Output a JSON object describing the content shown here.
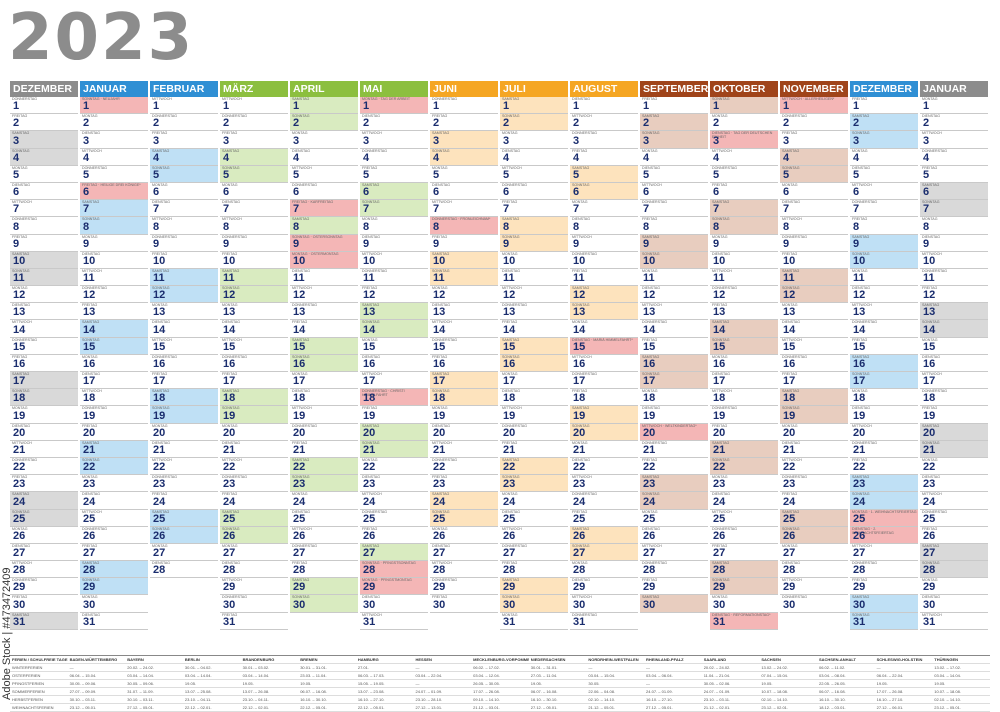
{
  "year": "2023",
  "watermark": "Adobe Stock | #473472409",
  "weekday_names": [
    "SONNTAG",
    "MONTAG",
    "DIENSTAG",
    "MITTWOCH",
    "DONNERSTAG",
    "FREITAG",
    "SAMSTAG"
  ],
  "months": [
    {
      "name": "Dezember",
      "color": "#8c8c8c",
      "tint": "#d9d9d9",
      "days": 31,
      "start": 4,
      "week_num_tint": true
    },
    {
      "name": "Januar",
      "color": "#2f8fd4",
      "tint": "#bfe0f5",
      "days": 31,
      "start": 0
    },
    {
      "name": "Februar",
      "color": "#2f8fd4",
      "tint": "#bfe0f5",
      "days": 28,
      "start": 3
    },
    {
      "name": "März",
      "color": "#8cbf3f",
      "tint": "#d9ebc0",
      "days": 31,
      "start": 3
    },
    {
      "name": "April",
      "color": "#8cbf3f",
      "tint": "#d9ebc0",
      "days": 30,
      "start": 6
    },
    {
      "name": "Mai",
      "color": "#8cbf3f",
      "tint": "#d9ebc0",
      "days": 31,
      "start": 1
    },
    {
      "name": "Juni",
      "color": "#f5a623",
      "tint": "#fde3bd",
      "days": 30,
      "start": 4
    },
    {
      "name": "Juli",
      "color": "#f5a623",
      "tint": "#fde3bd",
      "days": 31,
      "start": 6
    },
    {
      "name": "August",
      "color": "#f5a623",
      "tint": "#fde3bd",
      "days": 31,
      "start": 2
    },
    {
      "name": "September",
      "color": "#a0441a",
      "tint": "#e8cdbf",
      "days": 30,
      "start": 5
    },
    {
      "name": "Oktober",
      "color": "#a0441a",
      "tint": "#e8cdbf",
      "days": 31,
      "start": 0
    },
    {
      "name": "November",
      "color": "#a0441a",
      "tint": "#e8cdbf",
      "days": 30,
      "start": 3
    },
    {
      "name": "Dezember",
      "color": "#2f8fd4",
      "tint": "#bfe0f5",
      "days": 31,
      "start": 5
    },
    {
      "name": "Januar",
      "color": "#8c8c8c",
      "tint": "#d9d9d9",
      "days": 31,
      "start": 1
    }
  ],
  "holidays": {
    "1-1": "SONNTAG · NEUJAHR",
    "1-6": "FREITAG · HEILIGE DREI KÖNIGE*",
    "4-7": "FREITAG · KARFREITAG",
    "4-9": "SONNTAG · OSTERSONNTAG",
    "4-10": "MONTAG · OSTERMONTAG",
    "5-1": "MONTAG · TAG DER ARBEIT",
    "5-18": "DONNERSTAG · CHRISTI HIMMELFAHRT",
    "5-28": "SONNTAG · PFINGSTSONNTAG",
    "5-29": "MONTAG · PFINGSTMONTAG",
    "6-8": "DONNERSTAG · FRONLEICHNAM*",
    "8-15": "DIENSTAG · MARIÄ HIMMELFAHRT*",
    "9-20": "MITTWOCH · WELTKINDERTAG*",
    "10-3": "DIENSTAG · TAG DER DEUTSCHEN EINHEIT",
    "10-31": "DIENSTAG · REFORMATIONSTAG*",
    "11-1": "MITTWOCH · ALLERHEILIGEN*",
    "12-25": "MONTAG · 1. WEIHNACHTSFEIERTAG",
    "12-26": "DIENSTAG · 2. WEIHNACHTSFEIERTAG"
  },
  "holiday_color": "#f4b6b6",
  "footer": {
    "headers": [
      "FERIEN / SCHULFREIE TAGE",
      "BADEN-WÜRTTEMBERG",
      "BAYERN",
      "BERLIN",
      "BRANDENBURG",
      "BREMEN",
      "HAMBURG",
      "HESSEN",
      "MECKLENBURG-VORPOMMERN",
      "NIEDERSACHSEN",
      "NORDRHEIN-WESTFALEN",
      "RHEINLAND-PFALZ",
      "SAARLAND",
      "SACHSEN",
      "SACHSEN-ANHALT",
      "SCHLESWIG-HOLSTEIN",
      "THÜRINGEN"
    ],
    "rows": [
      [
        "WINTERFERIEN",
        "—",
        "20.02. – 24.02.",
        "30.01. – 04.02.",
        "30.01. – 03.02.",
        "30.01. – 31.01.",
        "27.01.",
        "—",
        "06.02. – 17.02.",
        "30.01. – 31.01.",
        "—",
        "—",
        "20.02. – 24.02.",
        "13.02. – 24.02.",
        "06.02. – 11.02.",
        "—",
        "13.02. – 17.02."
      ],
      [
        "OSTERFERIEN",
        "06.04. – 15.04.",
        "03.04. – 14.04.",
        "03.04. – 14.04.",
        "03.04. – 14.04.",
        "23.03. – 11.04.",
        "06.03. – 17.03.",
        "03.04. – 22.04.",
        "03.04. – 12.04.",
        "27.03. – 11.04.",
        "03.04. – 15.04.",
        "03.04. – 06.04.",
        "11.04. – 21.04.",
        "07.04. – 15.04.",
        "03.04. – 08.04.",
        "06.04. – 22.04.",
        "03.04. – 14.04."
      ],
      [
        "PFINGSTFERIEN",
        "30.05. – 09.06.",
        "30.05. – 09.06.",
        "19.05.",
        "19.05.",
        "19.05.",
        "15.05. – 19.05.",
        "—",
        "26.05. – 30.05.",
        "19.05.",
        "30.05.",
        "—",
        "30.05. – 02.06.",
        "19.05.",
        "22.05. – 26.05.",
        "19.05.",
        "19.05."
      ],
      [
        "SOMMERFERIEN",
        "27.07. – 09.09.",
        "31.07. – 11.09.",
        "13.07. – 25.08.",
        "13.07. – 26.08.",
        "06.07. – 16.08.",
        "13.07. – 23.08.",
        "24.07. – 01.09.",
        "17.07. – 26.08.",
        "06.07. – 16.08.",
        "22.06. – 04.08.",
        "24.07. – 01.09.",
        "24.07. – 01.09.",
        "10.07. – 18.08.",
        "06.07. – 16.08.",
        "17.07. – 26.08.",
        "10.07. – 18.08."
      ],
      [
        "HERBSTFERIEN",
        "30.10. – 03.11.",
        "30.10. – 03.11.",
        "23.10. – 04.11.",
        "23.10. – 04.11.",
        "16.10. – 30.10.",
        "16.10. – 27.10.",
        "23.10. – 28.10.",
        "09.10. – 14.10.",
        "16.10. – 30.10.",
        "02.10. – 14.10.",
        "16.10. – 27.10.",
        "23.10. – 03.11.",
        "02.10. – 14.10.",
        "16.10. – 30.10.",
        "16.10. – 27.10.",
        "02.10. – 14.10."
      ],
      [
        "WEIHNACHTSFERIEN",
        "23.12. – 05.01.",
        "27.12. – 05.01.",
        "22.12. – 02.01.",
        "22.12. – 02.01.",
        "22.12. – 05.01.",
        "22.12. – 05.01.",
        "27.12. – 13.01.",
        "21.12. – 03.01.",
        "27.12. – 05.01.",
        "21.12. – 05.01.",
        "27.12. – 05.01.",
        "21.12. – 02.01.",
        "23.12. – 02.01.",
        "18.12. – 03.01.",
        "27.12. – 06.01.",
        "23.12. – 05.01."
      ]
    ]
  }
}
